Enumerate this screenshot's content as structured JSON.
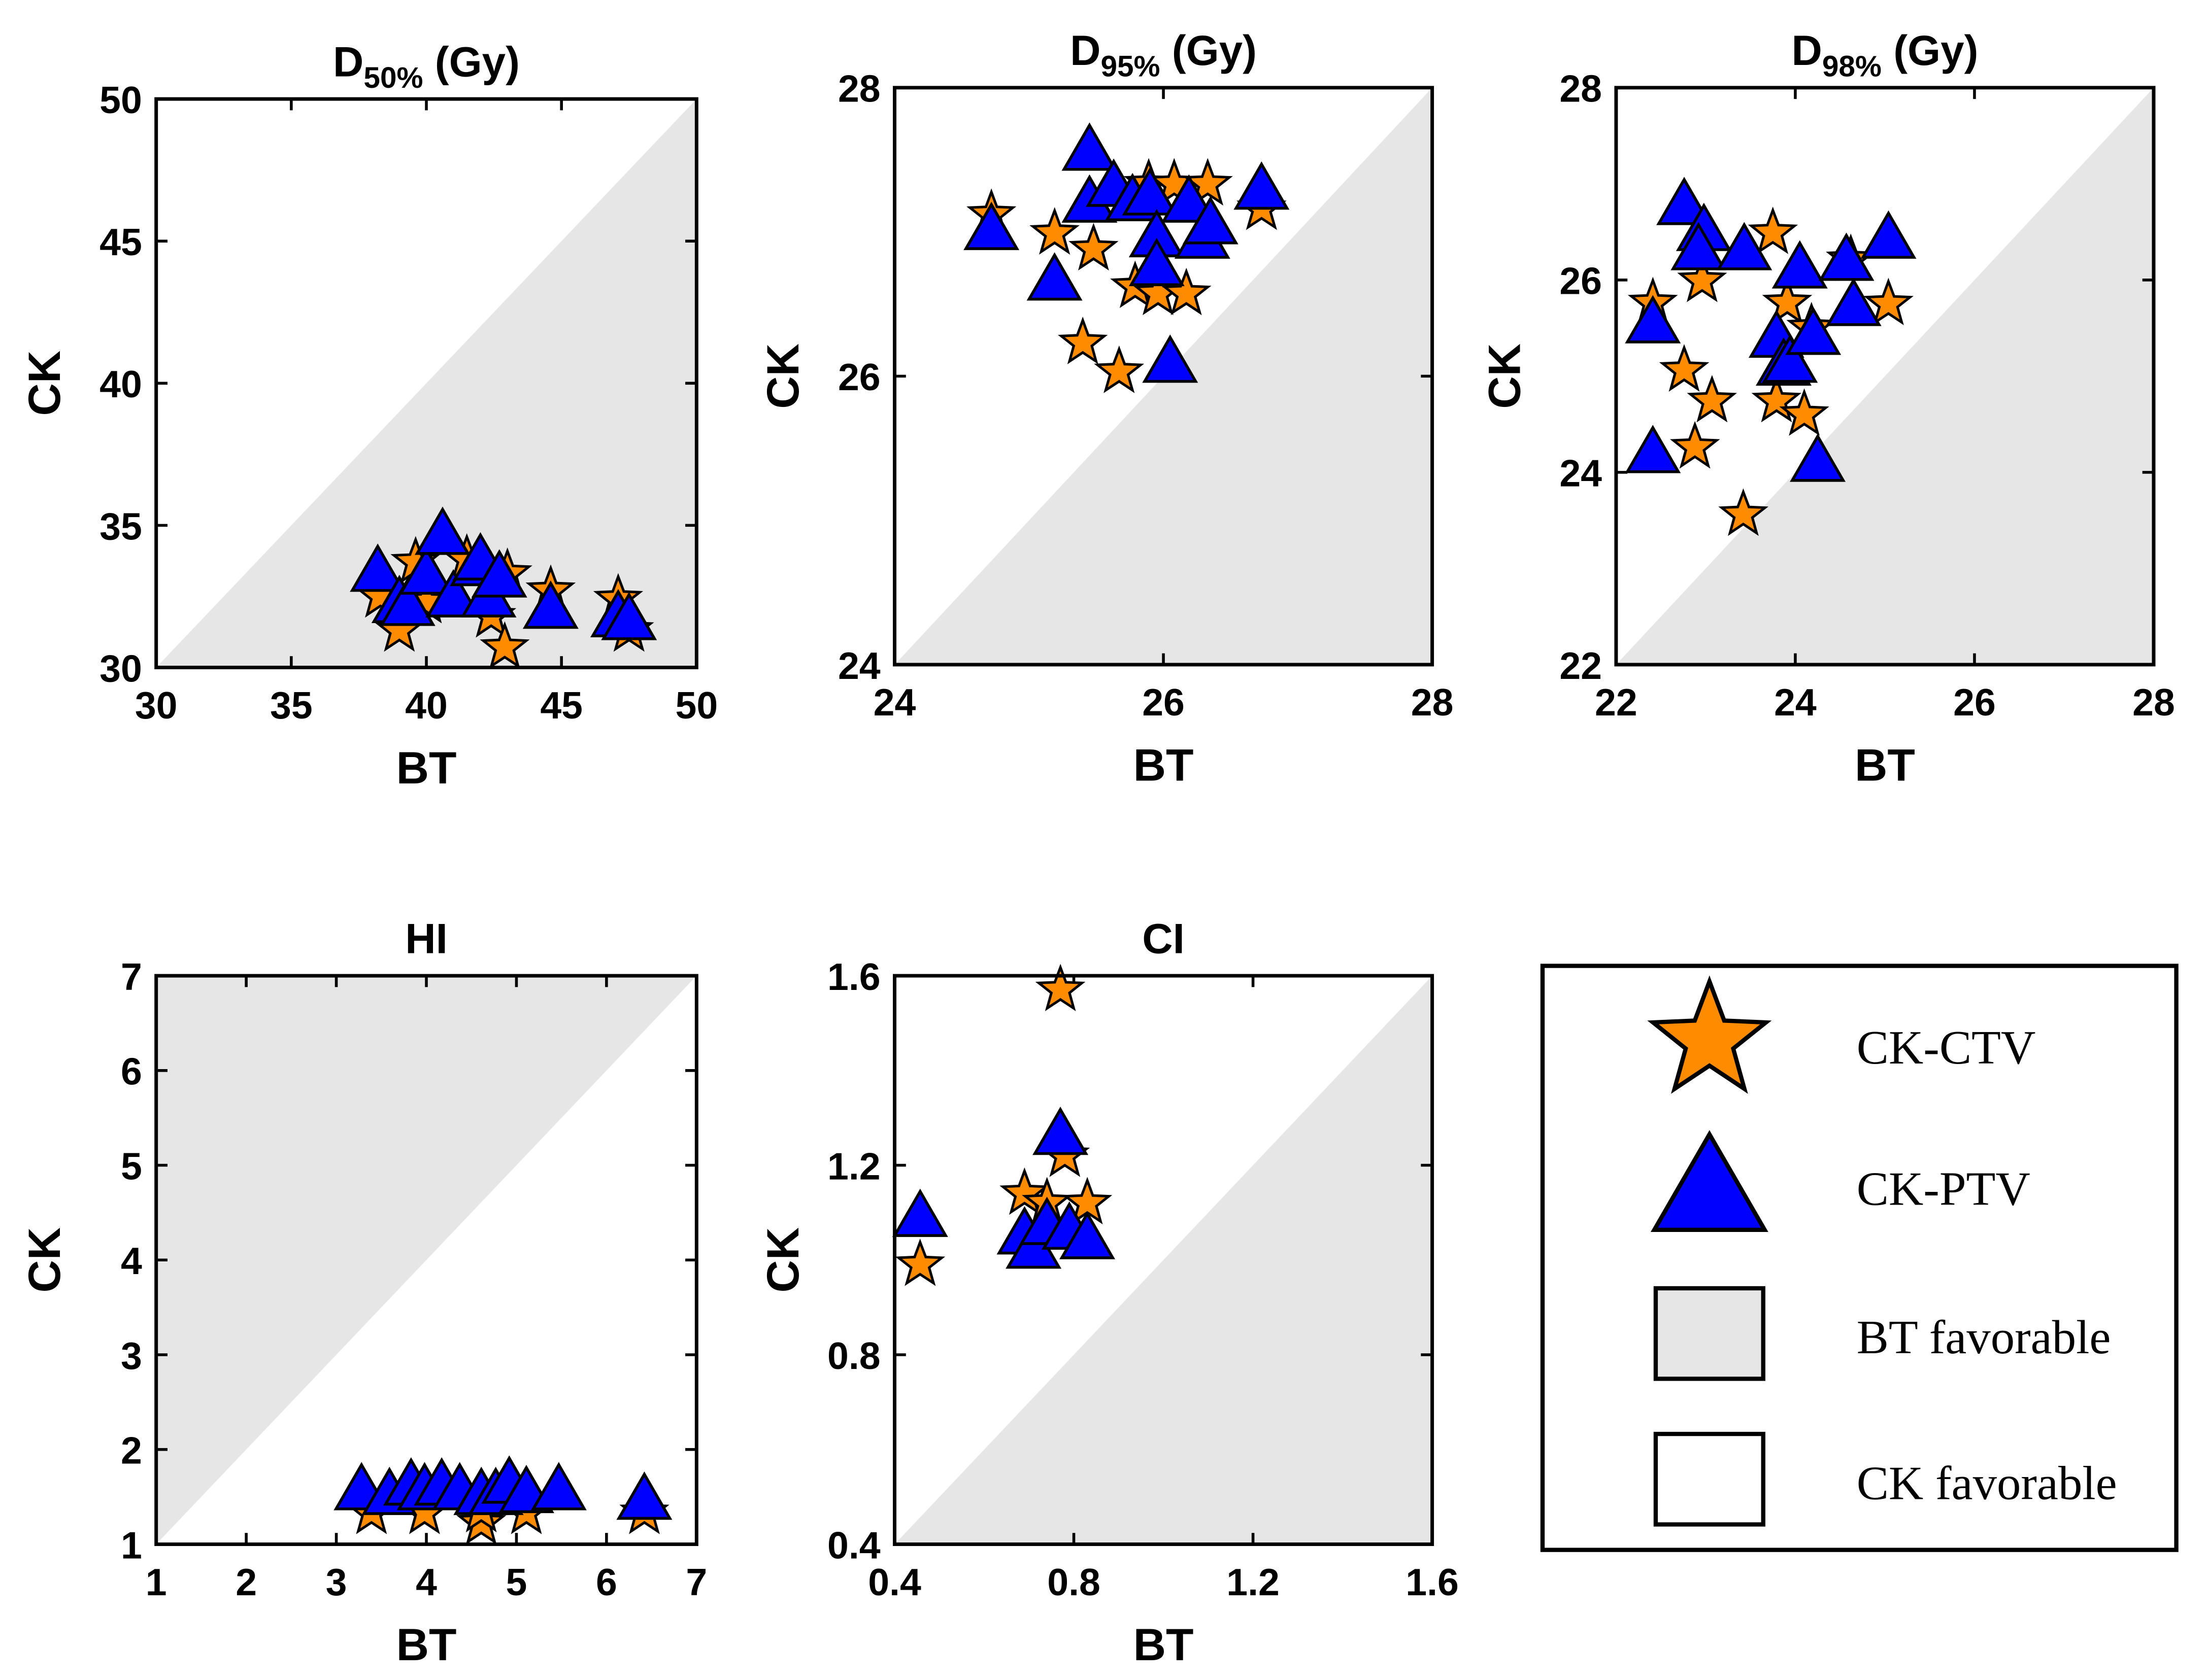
{
  "colors": {
    "star": "#ff8c00",
    "triangle": "#0000ff",
    "shade": "#e6e6e6",
    "outline": "#000000"
  },
  "legend": {
    "items": [
      {
        "label": "CK-CTV",
        "marker": "star"
      },
      {
        "label": "CK-PTV",
        "marker": "triangle"
      },
      {
        "label": "BT favorable",
        "marker": "shade-box"
      },
      {
        "label": "CK favorable",
        "marker": "white-box"
      }
    ]
  },
  "chart_data": [
    {
      "type": "scatter",
      "title_main": "D",
      "title_sub": "50%",
      "title_unit": " (Gy)",
      "xlabel": "BT",
      "ylabel": "CK",
      "xlim": [
        30,
        50
      ],
      "ylim": [
        30,
        50
      ],
      "xticks": [
        "30",
        "35",
        "40",
        "45",
        "50"
      ],
      "yticks": [
        "30",
        "35",
        "40",
        "45",
        "50"
      ],
      "shade": "below-diagonal",
      "series": [
        {
          "name": "CK-CTV",
          "marker": "star",
          "points": [
            [
              38.3,
              32.5
            ],
            [
              39.0,
              31.3
            ],
            [
              39.6,
              33.7
            ],
            [
              40.0,
              32.3
            ],
            [
              41.5,
              33.8
            ],
            [
              42.4,
              31.8
            ],
            [
              43.0,
              33.3
            ],
            [
              42.9,
              30.7
            ],
            [
              44.6,
              32.7
            ],
            [
              47.1,
              32.4
            ],
            [
              47.5,
              31.3
            ]
          ]
        },
        {
          "name": "CK-PTV",
          "marker": "triangle",
          "points": [
            [
              38.2,
              33.3
            ],
            [
              39.0,
              32.2
            ],
            [
              39.3,
              32.1
            ],
            [
              40.0,
              33.2
            ],
            [
              40.6,
              34.6
            ],
            [
              41.0,
              32.4
            ],
            [
              41.9,
              33.5
            ],
            [
              42.0,
              33.7
            ],
            [
              42.3,
              32.4
            ],
            [
              42.7,
              33.1
            ],
            [
              44.6,
              32.0
            ],
            [
              47.1,
              31.7
            ],
            [
              47.5,
              31.6
            ]
          ]
        }
      ]
    },
    {
      "type": "scatter",
      "title_main": "D",
      "title_sub": "95%",
      "title_unit": " (Gy)",
      "xlabel": "BT",
      "ylabel": "CK",
      "xlim": [
        24,
        28
      ],
      "ylim": [
        24,
        28
      ],
      "xticks": [
        "24",
        "26",
        "28"
      ],
      "yticks": [
        "24",
        "26",
        "28"
      ],
      "shade": "below-diagonal",
      "series": [
        {
          "name": "CK-CTV",
          "marker": "star",
          "points": [
            [
              24.72,
              27.12
            ],
            [
              25.19,
              26.99
            ],
            [
              25.48,
              26.88
            ],
            [
              25.4,
              26.23
            ],
            [
              25.67,
              26.03
            ],
            [
              25.79,
              26.62
            ],
            [
              25.96,
              26.57
            ],
            [
              26.17,
              26.57
            ],
            [
              25.89,
              27.33
            ],
            [
              26.08,
              27.33
            ],
            [
              26.33,
              27.33
            ],
            [
              26.73,
              27.16
            ]
          ]
        },
        {
          "name": "CK-PTV",
          "marker": "triangle",
          "points": [
            [
              24.72,
              27.0
            ],
            [
              25.19,
              26.65
            ],
            [
              25.45,
              27.55
            ],
            [
              25.45,
              27.19
            ],
            [
              25.63,
              27.3
            ],
            [
              25.77,
              27.2
            ],
            [
              25.9,
              27.24
            ],
            [
              25.95,
              26.95
            ],
            [
              25.95,
              26.75
            ],
            [
              26.05,
              26.08
            ],
            [
              26.19,
              27.19
            ],
            [
              26.29,
              26.94
            ],
            [
              26.35,
              27.04
            ],
            [
              26.73,
              27.28
            ]
          ]
        }
      ]
    },
    {
      "type": "scatter",
      "title_main": "D",
      "title_sub": "98%",
      "title_unit": " (Gy)",
      "xlabel": "BT",
      "ylabel": "CK",
      "xlim": [
        22,
        28
      ],
      "ylim": [
        22,
        28
      ],
      "xticks": [
        "22",
        "24",
        "26",
        "28"
      ],
      "yticks": [
        "22",
        "24",
        "26",
        "28"
      ],
      "shade": "below-diagonal",
      "series": [
        {
          "name": "CK-CTV",
          "marker": "star",
          "points": [
            [
              23.75,
              26.49
            ],
            [
              22.41,
              25.76
            ],
            [
              22.76,
              25.06
            ],
            [
              22.96,
              25.99
            ],
            [
              23.07,
              24.74
            ],
            [
              22.88,
              24.26
            ],
            [
              23.42,
              23.56
            ],
            [
              23.79,
              24.74
            ],
            [
              24.1,
              24.6
            ],
            [
              23.91,
              25.76
            ],
            [
              24.62,
              26.21
            ],
            [
              25.04,
              25.75
            ],
            [
              24.18,
              25.5
            ]
          ]
        },
        {
          "name": "CK-PTV",
          "marker": "triangle",
          "points": [
            [
              22.76,
              26.76
            ],
            [
              22.98,
              26.49
            ],
            [
              22.92,
              26.29
            ],
            [
              23.43,
              26.29
            ],
            [
              22.41,
              25.53
            ],
            [
              22.41,
              24.18
            ],
            [
              23.79,
              25.38
            ],
            [
              23.87,
              25.09
            ],
            [
              23.94,
              25.12
            ],
            [
              24.05,
              26.1
            ],
            [
              24.57,
              26.18
            ],
            [
              25.04,
              26.41
            ],
            [
              24.65,
              25.71
            ],
            [
              24.2,
              25.41
            ],
            [
              24.25,
              24.09
            ]
          ]
        }
      ]
    },
    {
      "type": "scatter",
      "title_main": "HI",
      "title_sub": "",
      "title_unit": "",
      "xlabel": "BT",
      "ylabel": "CK",
      "xlim": [
        1,
        7
      ],
      "ylim": [
        1,
        7
      ],
      "xticks": [
        "1",
        "2",
        "3",
        "4",
        "5",
        "6",
        "7"
      ],
      "yticks": [
        "1",
        "2",
        "3",
        "4",
        "5",
        "6",
        "7"
      ],
      "shade": "above-diagonal",
      "series": [
        {
          "name": "CK-CTV",
          "marker": "star",
          "points": [
            [
              3.39,
              1.33
            ],
            [
              3.98,
              1.33
            ],
            [
              4.61,
              1.22
            ],
            [
              4.61,
              1.35
            ],
            [
              5.11,
              1.33
            ],
            [
              6.42,
              1.33
            ]
          ]
        },
        {
          "name": "CK-PTV",
          "marker": "triangle",
          "points": [
            [
              3.28,
              1.55
            ],
            [
              3.59,
              1.5
            ],
            [
              3.83,
              1.6
            ],
            [
              3.98,
              1.55
            ],
            [
              4.17,
              1.6
            ],
            [
              4.37,
              1.55
            ],
            [
              4.61,
              1.5
            ],
            [
              4.77,
              1.5
            ],
            [
              4.92,
              1.62
            ],
            [
              5.11,
              1.52
            ],
            [
              5.47,
              1.55
            ],
            [
              6.42,
              1.45
            ]
          ]
        }
      ]
    },
    {
      "type": "scatter",
      "title_main": "CI",
      "title_sub": "",
      "title_unit": "",
      "xlabel": "BT",
      "ylabel": "CK",
      "xlim": [
        0.4,
        1.6
      ],
      "ylim": [
        0.4,
        1.6
      ],
      "xticks": [
        "0.4",
        "0.8",
        "1.2",
        "1.6"
      ],
      "yticks": [
        "0.4",
        "0.8",
        "1.2",
        "1.6"
      ],
      "shade": "below-diagonal",
      "series": [
        {
          "name": "CK-CTV",
          "marker": "star",
          "points": [
            [
              0.457,
              0.99
            ],
            [
              0.77,
              1.57
            ],
            [
              0.69,
              1.14
            ],
            [
              0.78,
              1.22
            ],
            [
              0.83,
              1.12
            ],
            [
              0.74,
              1.12
            ]
          ]
        },
        {
          "name": "CK-PTV",
          "marker": "triangle",
          "points": [
            [
              0.457,
              1.087
            ],
            [
              0.69,
              1.05
            ],
            [
              0.71,
              1.02
            ],
            [
              0.74,
              1.07
            ],
            [
              0.77,
              1.26
            ],
            [
              0.79,
              1.06
            ],
            [
              0.83,
              1.04
            ]
          ]
        }
      ]
    }
  ]
}
